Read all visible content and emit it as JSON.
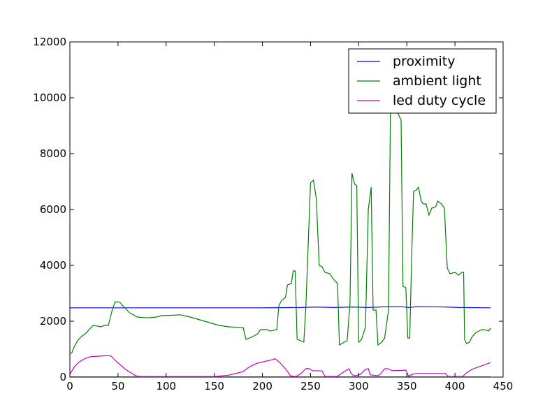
{
  "chart_data": {
    "type": "line",
    "xlim": [
      0,
      450
    ],
    "ylim": [
      0,
      12000
    ],
    "x_ticks": [
      0,
      50,
      100,
      150,
      200,
      250,
      300,
      350,
      400,
      450
    ],
    "y_ticks": [
      0,
      2000,
      4000,
      6000,
      8000,
      10000,
      12000
    ],
    "x_tick_labels": [
      "0",
      "50",
      "100",
      "150",
      "200",
      "250",
      "300",
      "350",
      "400",
      "450"
    ],
    "y_tick_labels": [
      "0",
      "2000",
      "4000",
      "6000",
      "8000",
      "10000",
      "12000"
    ],
    "grid": false,
    "legend_position": "top-right",
    "series": [
      {
        "name": "proximity",
        "color": "#0000ff",
        "points": [
          [
            0,
            2480
          ],
          [
            50,
            2480
          ],
          [
            100,
            2480
          ],
          [
            150,
            2480
          ],
          [
            200,
            2480
          ],
          [
            240,
            2490
          ],
          [
            255,
            2510
          ],
          [
            275,
            2490
          ],
          [
            293,
            2510
          ],
          [
            310,
            2490
          ],
          [
            330,
            2520
          ],
          [
            345,
            2520
          ],
          [
            352,
            2490
          ],
          [
            360,
            2520
          ],
          [
            390,
            2510
          ],
          [
            405,
            2490
          ],
          [
            437,
            2480
          ]
        ]
      },
      {
        "name": "ambient light",
        "color": "#008000",
        "points": [
          [
            0,
            850
          ],
          [
            2,
            870
          ],
          [
            4,
            1050
          ],
          [
            8,
            1300
          ],
          [
            12,
            1450
          ],
          [
            16,
            1550
          ],
          [
            20,
            1700
          ],
          [
            24,
            1850
          ],
          [
            28,
            1830
          ],
          [
            32,
            1800
          ],
          [
            36,
            1850
          ],
          [
            40,
            1850
          ],
          [
            44,
            2400
          ],
          [
            47,
            2700
          ],
          [
            52,
            2680
          ],
          [
            55,
            2550
          ],
          [
            58,
            2450
          ],
          [
            62,
            2300
          ],
          [
            65,
            2250
          ],
          [
            70,
            2150
          ],
          [
            80,
            2120
          ],
          [
            90,
            2150
          ],
          [
            95,
            2200
          ],
          [
            110,
            2220
          ],
          [
            115,
            2230
          ],
          [
            125,
            2150
          ],
          [
            135,
            2050
          ],
          [
            145,
            1950
          ],
          [
            150,
            1900
          ],
          [
            155,
            1850
          ],
          [
            165,
            1800
          ],
          [
            175,
            1780
          ],
          [
            180,
            1770
          ],
          [
            183,
            1350
          ],
          [
            190,
            1450
          ],
          [
            195,
            1550
          ],
          [
            198,
            1700
          ],
          [
            205,
            1700
          ],
          [
            208,
            1650
          ],
          [
            215,
            1700
          ],
          [
            217,
            2550
          ],
          [
            220,
            2750
          ],
          [
            224,
            2850
          ],
          [
            226,
            3300
          ],
          [
            230,
            3350
          ],
          [
            232,
            3800
          ],
          [
            234,
            3800
          ],
          [
            236,
            1350
          ],
          [
            240,
            1300
          ],
          [
            243,
            1250
          ],
          [
            245,
            2450
          ],
          [
            250,
            6950
          ],
          [
            253,
            7050
          ],
          [
            256,
            6400
          ],
          [
            259,
            4000
          ],
          [
            262,
            3950
          ],
          [
            265,
            3750
          ],
          [
            270,
            3700
          ],
          [
            274,
            3500
          ],
          [
            278,
            3350
          ],
          [
            280,
            1150
          ],
          [
            285,
            1250
          ],
          [
            288,
            1300
          ],
          [
            291,
            2650
          ],
          [
            293,
            7300
          ],
          [
            295,
            7000
          ],
          [
            296,
            6900
          ],
          [
            298,
            6850
          ],
          [
            300,
            1250
          ],
          [
            303,
            1350
          ],
          [
            307,
            1800
          ],
          [
            310,
            6000
          ],
          [
            313,
            6800
          ],
          [
            315,
            2400
          ],
          [
            318,
            2400
          ],
          [
            320,
            1150
          ],
          [
            324,
            1250
          ],
          [
            327,
            1400
          ],
          [
            331,
            2400
          ],
          [
            333,
            9600
          ],
          [
            336,
            9900
          ],
          [
            340,
            9500
          ],
          [
            344,
            9200
          ],
          [
            346,
            3250
          ],
          [
            349,
            3200
          ],
          [
            351,
            1400
          ],
          [
            353,
            1400
          ],
          [
            355,
            4250
          ],
          [
            357,
            6650
          ],
          [
            360,
            6700
          ],
          [
            362,
            6800
          ],
          [
            365,
            6300
          ],
          [
            367,
            6200
          ],
          [
            370,
            6200
          ],
          [
            373,
            5800
          ],
          [
            376,
            6050
          ],
          [
            380,
            6100
          ],
          [
            382,
            6300
          ],
          [
            386,
            6200
          ],
          [
            389,
            6050
          ],
          [
            392,
            3900
          ],
          [
            395,
            3700
          ],
          [
            400,
            3750
          ],
          [
            404,
            3650
          ],
          [
            407,
            3750
          ],
          [
            409,
            3750
          ],
          [
            410,
            1350
          ],
          [
            412,
            1200
          ],
          [
            415,
            1250
          ],
          [
            418,
            1450
          ],
          [
            422,
            1600
          ],
          [
            428,
            1700
          ],
          [
            433,
            1680
          ],
          [
            435,
            1650
          ],
          [
            437,
            1750
          ]
        ]
      },
      {
        "name": "led duty cycle",
        "color": "#bf00bf",
        "points": [
          [
            0,
            100
          ],
          [
            5,
            380
          ],
          [
            10,
            550
          ],
          [
            15,
            650
          ],
          [
            20,
            720
          ],
          [
            25,
            740
          ],
          [
            30,
            750
          ],
          [
            35,
            760
          ],
          [
            40,
            770
          ],
          [
            43,
            750
          ],
          [
            47,
            600
          ],
          [
            52,
            450
          ],
          [
            57,
            300
          ],
          [
            62,
            180
          ],
          [
            67,
            80
          ],
          [
            70,
            30
          ],
          [
            75,
            20
          ],
          [
            150,
            20
          ],
          [
            165,
            70
          ],
          [
            175,
            150
          ],
          [
            180,
            200
          ],
          [
            185,
            330
          ],
          [
            190,
            430
          ],
          [
            195,
            500
          ],
          [
            205,
            580
          ],
          [
            210,
            620
          ],
          [
            213,
            660
          ],
          [
            216,
            580
          ],
          [
            220,
            450
          ],
          [
            225,
            250
          ],
          [
            229,
            50
          ],
          [
            232,
            30
          ],
          [
            235,
            25
          ],
          [
            240,
            120
          ],
          [
            245,
            300
          ],
          [
            248,
            310
          ],
          [
            252,
            230
          ],
          [
            262,
            220
          ],
          [
            265,
            20
          ],
          [
            278,
            30
          ],
          [
            285,
            200
          ],
          [
            290,
            300
          ],
          [
            292,
            130
          ],
          [
            295,
            50
          ],
          [
            298,
            60
          ],
          [
            302,
            100
          ],
          [
            307,
            280
          ],
          [
            310,
            300
          ],
          [
            312,
            80
          ],
          [
            315,
            70
          ],
          [
            320,
            50
          ],
          [
            323,
            120
          ],
          [
            327,
            300
          ],
          [
            330,
            300
          ],
          [
            335,
            230
          ],
          [
            345,
            240
          ],
          [
            349,
            250
          ],
          [
            352,
            20
          ],
          [
            355,
            100
          ],
          [
            360,
            130
          ],
          [
            390,
            130
          ],
          [
            393,
            20
          ],
          [
            408,
            20
          ],
          [
            412,
            150
          ],
          [
            418,
            280
          ],
          [
            424,
            360
          ],
          [
            430,
            430
          ],
          [
            437,
            520
          ]
        ]
      },
      {
        "name": "",
        "color": "#00bfbf",
        "points": [
          [
            0,
            10
          ],
          [
            437,
            10
          ]
        ]
      }
    ]
  }
}
